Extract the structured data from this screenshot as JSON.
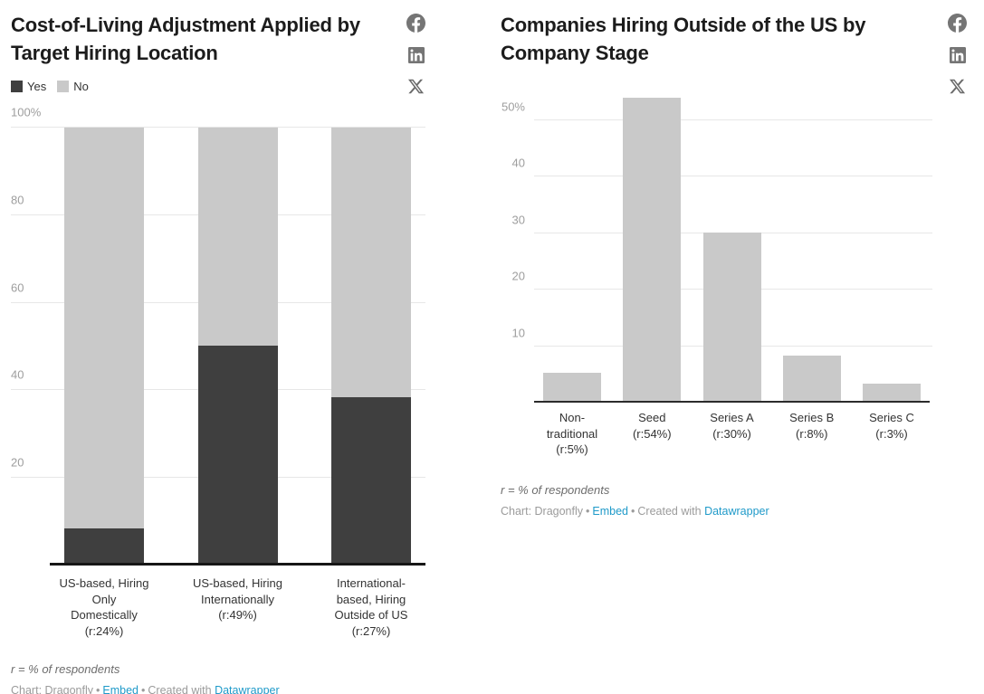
{
  "share_icons": [
    "facebook-icon",
    "linkedin-icon",
    "x-icon"
  ],
  "colors": {
    "yes_bar": "#3f3f3f",
    "no_bar": "#c9c9c9",
    "single_bar": "#c9c9c9",
    "link_blue": "#1f9ac9",
    "baseline": "#161616",
    "gridline": "#e7e7e7"
  },
  "attribution": {
    "label": "Chart: Dragonfly",
    "separator": "•",
    "embed_label": "Embed",
    "created_with": "Created with",
    "tool_label": "Datawrapper"
  },
  "chart_data": [
    {
      "type": "bar",
      "variant": "stacked-column",
      "title": "Cost-of-Living Adjustment Applied by Target Hiring Location",
      "categories": [
        "US-based, Hiring\nOnly\nDomestically\n(r:24%)",
        "US-based, Hiring\nInternationally\n(r:49%)",
        "International-\nbased, Hiring\nOutside of US\n(r:27%)"
      ],
      "series": [
        {
          "name": "Yes",
          "color": "#3f3f3f",
          "values": [
            8,
            50,
            38
          ]
        },
        {
          "name": "No",
          "color": "#c9c9c9",
          "values": [
            92,
            50,
            62
          ]
        }
      ],
      "ylim": [
        0,
        100
      ],
      "yticks": [
        20,
        40,
        60,
        80,
        100
      ],
      "ytick_labels": [
        "20",
        "40",
        "60",
        "80",
        "100%"
      ],
      "grid": true,
      "legend_position": "top-left",
      "footnote": "r = % of respondents"
    },
    {
      "type": "bar",
      "variant": "column",
      "title": "Companies Hiring Outside of the US by Company Stage",
      "categories": [
        "Non-\ntraditional\n(r:5%)",
        "Seed\n(r:54%)",
        "Series A\n(r:30%)",
        "Series B\n(r:8%)",
        "Series C\n(r:3%)"
      ],
      "values": [
        5,
        54,
        30,
        8,
        3
      ],
      "bar_color": "#c9c9c9",
      "ylim": [
        0,
        54
      ],
      "yticks": [
        10,
        20,
        30,
        40,
        50
      ],
      "ytick_labels": [
        "10",
        "20",
        "30",
        "40",
        "50%"
      ],
      "grid": true,
      "footnote": "r = % of respondents"
    }
  ]
}
